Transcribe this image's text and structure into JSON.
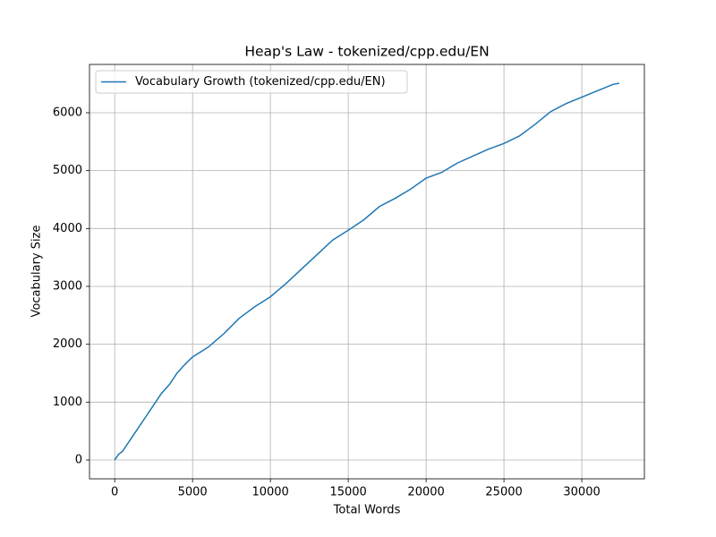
{
  "chart_data": {
    "type": "line",
    "title": "Heap's Law - tokenized/cpp.edu/EN",
    "x_label": "Total Words",
    "y_label": "Vocabulary Size",
    "x": [
      0,
      250,
      500,
      1000,
      1500,
      2000,
      2500,
      3000,
      3500,
      4000,
      4500,
      5000,
      6000,
      7000,
      8000,
      9000,
      10000,
      11000,
      12000,
      13000,
      14000,
      15000,
      16000,
      17000,
      18000,
      19000,
      20000,
      21000,
      22000,
      23000,
      24000,
      25000,
      26000,
      27000,
      28000,
      29000,
      30000,
      31000,
      32000,
      32400
    ],
    "series": [
      {
        "name": "Vocabulary Growth (tokenized/cpp.edu/EN)",
        "color": "#1f77b4",
        "values": [
          0,
          100,
          150,
          350,
          550,
          750,
          950,
          1150,
          1300,
          1500,
          1650,
          1780,
          1950,
          2180,
          2450,
          2650,
          2820,
          3050,
          3300,
          3550,
          3800,
          3970,
          4150,
          4380,
          4520,
          4680,
          4870,
          4970,
          5130,
          5250,
          5370,
          5470,
          5600,
          5800,
          6020,
          6160,
          6270,
          6380,
          6490,
          6510
        ]
      }
    ],
    "xlim": [
      -1620,
      34020
    ],
    "ylim": [
      -325,
      6835
    ],
    "xticks": [
      0,
      5000,
      10000,
      15000,
      20000,
      25000,
      30000
    ],
    "yticks": [
      0,
      1000,
      2000,
      3000,
      4000,
      5000,
      6000
    ],
    "grid": true,
    "legend": "upper left"
  }
}
